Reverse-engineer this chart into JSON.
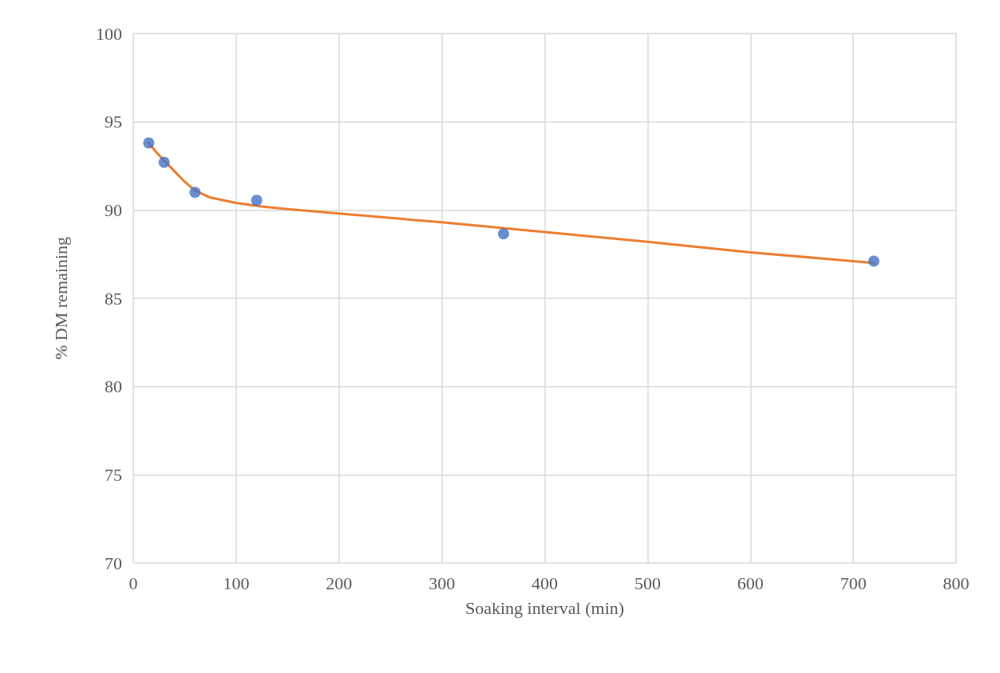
{
  "chart_data": {
    "type": "scatter",
    "xlabel": "Soaking interval (min)",
    "ylabel": "% DM remaining",
    "xlim": [
      0,
      800
    ],
    "xticks": [
      0,
      100,
      200,
      300,
      400,
      500,
      600,
      700,
      800
    ],
    "ylim": [
      70,
      100
    ],
    "yticks": [
      70,
      75,
      80,
      85,
      90,
      95,
      100
    ],
    "grid": true,
    "marker": "circle",
    "series": [
      {
        "color": "#4472c4",
        "x": [
          15,
          30,
          60,
          120,
          360,
          720
        ],
        "values": [
          93.8,
          92.7,
          91.0,
          90.55,
          88.65,
          87.1
        ]
      },
      {
        "type": "line",
        "color": "#ed7d31",
        "line_style": "solid",
        "marker": "none",
        "x": [
          15,
          22,
          30,
          40,
          50,
          60,
          75,
          100,
          125,
          150,
          200,
          300,
          400,
          500,
          600,
          720
        ],
        "values": [
          93.8,
          93.3,
          92.8,
          92.2,
          91.6,
          91.1,
          90.7,
          90.4,
          90.2,
          90.05,
          89.8,
          89.3,
          88.75,
          88.2,
          87.6,
          87.0
        ]
      }
    ]
  }
}
